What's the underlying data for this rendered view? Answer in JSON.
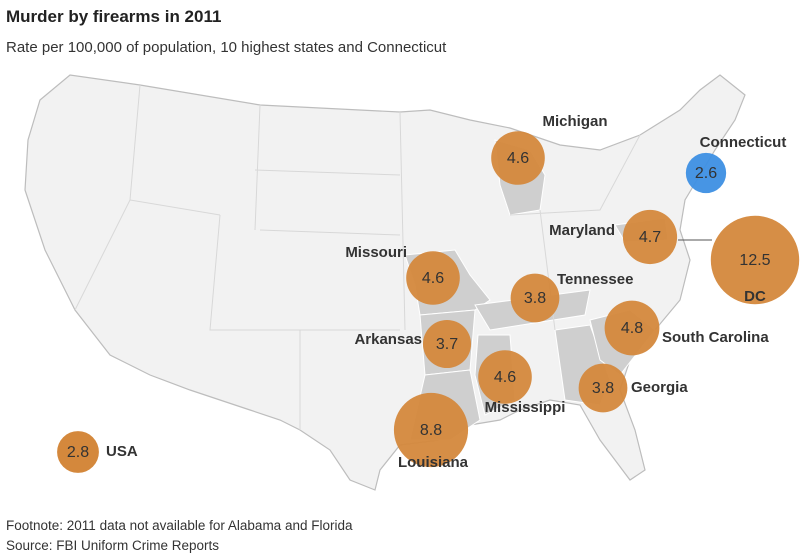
{
  "chart_data": {
    "type": "bubble_map",
    "title": "Murder by firearms in 2011",
    "subtitle": "Rate per 100,000 of population, 10 highest states and Connecticut",
    "categories": [
      "Michigan",
      "Connecticut",
      "Maryland",
      "DC",
      "Missouri",
      "Tennessee",
      "South Carolina",
      "Arkansas",
      "Mississippi",
      "Georgia",
      "Louisiana"
    ],
    "values": [
      4.6,
      2.6,
      4.7,
      12.5,
      4.6,
      3.8,
      4.8,
      3.7,
      4.6,
      3.8,
      8.8
    ],
    "colors": [
      "#d4883c",
      "#3d8fe3",
      "#d4883c",
      "#d4883c",
      "#d4883c",
      "#d4883c",
      "#d4883c",
      "#d4883c",
      "#d4883c",
      "#d4883c",
      "#d4883c"
    ],
    "reference": {
      "name": "USA",
      "value": 2.8,
      "color": "#d4883c"
    },
    "footnote": "Footnote: 2011 data not available for Alabama and Florida",
    "source": "Source: FBI Uniform Crime Reports"
  }
}
